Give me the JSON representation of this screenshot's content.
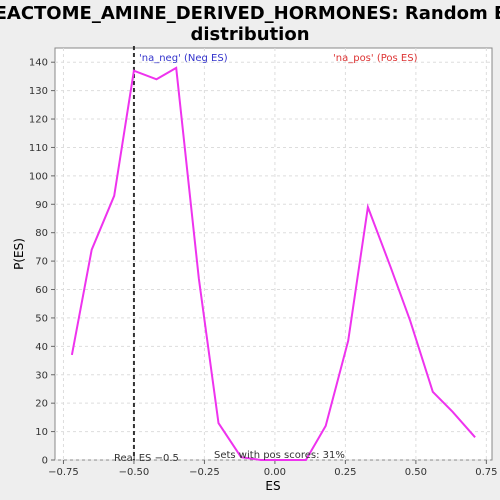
{
  "chart_data": {
    "type": "line",
    "title_line1": "REACTOME_AMINE_DERIVED_HORMONES: Random ES",
    "title_line2": "distribution",
    "xlabel": "ES",
    "ylabel": "P(ES)",
    "xlim": [
      -0.78,
      0.77
    ],
    "ylim": [
      0,
      145
    ],
    "xticks": [
      -0.75,
      -0.5,
      -0.25,
      0,
      0.25,
      0.5,
      0.75
    ],
    "xtick_labels": [
      "−0.75",
      "−0.50",
      "−0.25",
      "0.00",
      "0.25",
      "0.50",
      "0.75"
    ],
    "yticks": [
      0,
      10,
      20,
      30,
      40,
      50,
      60,
      70,
      80,
      90,
      100,
      110,
      120,
      130,
      140
    ],
    "grid": true,
    "series": [
      {
        "color": "#ee33ee",
        "x": [
          -0.72,
          -0.65,
          -0.57,
          -0.5,
          -0.42,
          -0.35,
          -0.27,
          -0.2,
          -0.12,
          -0.05,
          0.03,
          0.11,
          0.18,
          0.26,
          0.33,
          0.41,
          0.48,
          0.56,
          0.63,
          0.71
        ],
        "y": [
          37,
          74,
          93,
          137,
          134,
          138,
          64,
          13,
          1,
          0,
          0,
          0,
          12,
          42,
          89,
          68,
          49,
          24,
          17,
          8
        ]
      }
    ],
    "real_es": -0.5,
    "real_es_label": "Real ES −0.5",
    "neg_label": "'na_neg' (Neg ES)",
    "pos_label": "'na_pos' (Pos ES)",
    "sets_label": "Sets with pos scores: 31%",
    "colors": {
      "line": "#ee33ee",
      "neg": "#3333cc",
      "pos": "#dd3333",
      "grid": "#dddddd",
      "real_es_line": "#333333"
    }
  }
}
